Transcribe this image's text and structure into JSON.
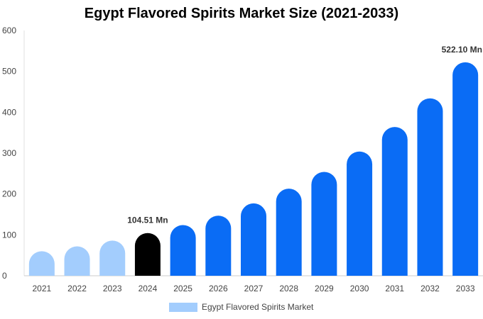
{
  "chart_data": {
    "type": "bar",
    "title": "Egypt Flavored Spirits Market Size (2021-2033)",
    "categories": [
      "2021",
      "2022",
      "2023",
      "2024",
      "2025",
      "2026",
      "2027",
      "2028",
      "2029",
      "2030",
      "2031",
      "2032",
      "2033"
    ],
    "series": [
      {
        "name": "Egypt Flavored Spirits Market",
        "values": [
          60,
          72,
          86,
          104.51,
          124,
          147,
          177,
          213,
          254,
          304,
          364,
          434,
          522.1
        ]
      }
    ],
    "ylim": [
      0,
      600
    ],
    "yticks": [
      "0",
      "100",
      "200",
      "300",
      "400",
      "500",
      "600"
    ],
    "data_labels": [
      {
        "category": "2024",
        "text": "104.51 Mn"
      },
      {
        "category": "2033",
        "text": "522.10 Mn"
      }
    ],
    "colors": {
      "historical": "#a3cdfd",
      "base_year": "#000000",
      "forecast": "#0a6cf5"
    },
    "grid": false,
    "legend_position": "bottom"
  }
}
